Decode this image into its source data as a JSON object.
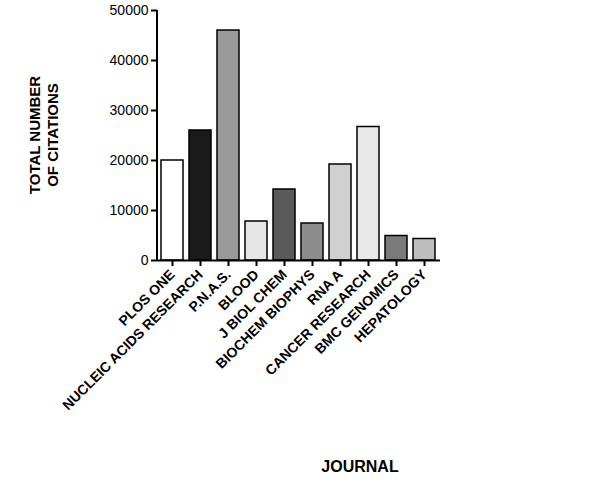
{
  "chart_data": {
    "type": "bar",
    "x_label": "JOURNAL",
    "y_label": "TOTAL NUMBER OF CITATIONS",
    "categories": [
      "PLOS ONE",
      "NUCLEIC ACIDS RESEARCH",
      "P.N.A.S.",
      "BLOOD",
      "J BIOL CHEM",
      "BIOCHEM BIOPHYS",
      "RNA A",
      "CANCER RESEARCH",
      "BMC GENOMICS",
      "HEPATOLOGY"
    ],
    "values": [
      20000,
      26000,
      46000,
      7800,
      14200,
      7400,
      19200,
      26700,
      4900,
      4300
    ],
    "colors": [
      "#ffffff",
      "#1a1a1a",
      "#9a9a9a",
      "#e6e6e6",
      "#5a5a5a",
      "#8c8c8c",
      "#d0d0d0",
      "#e9e9e9",
      "#7a7a7a",
      "#bdbdbd"
    ],
    "ylim": [
      0,
      50000
    ],
    "yticks": [
      0,
      10000,
      20000,
      30000,
      40000,
      50000
    ],
    "grid": false
  }
}
